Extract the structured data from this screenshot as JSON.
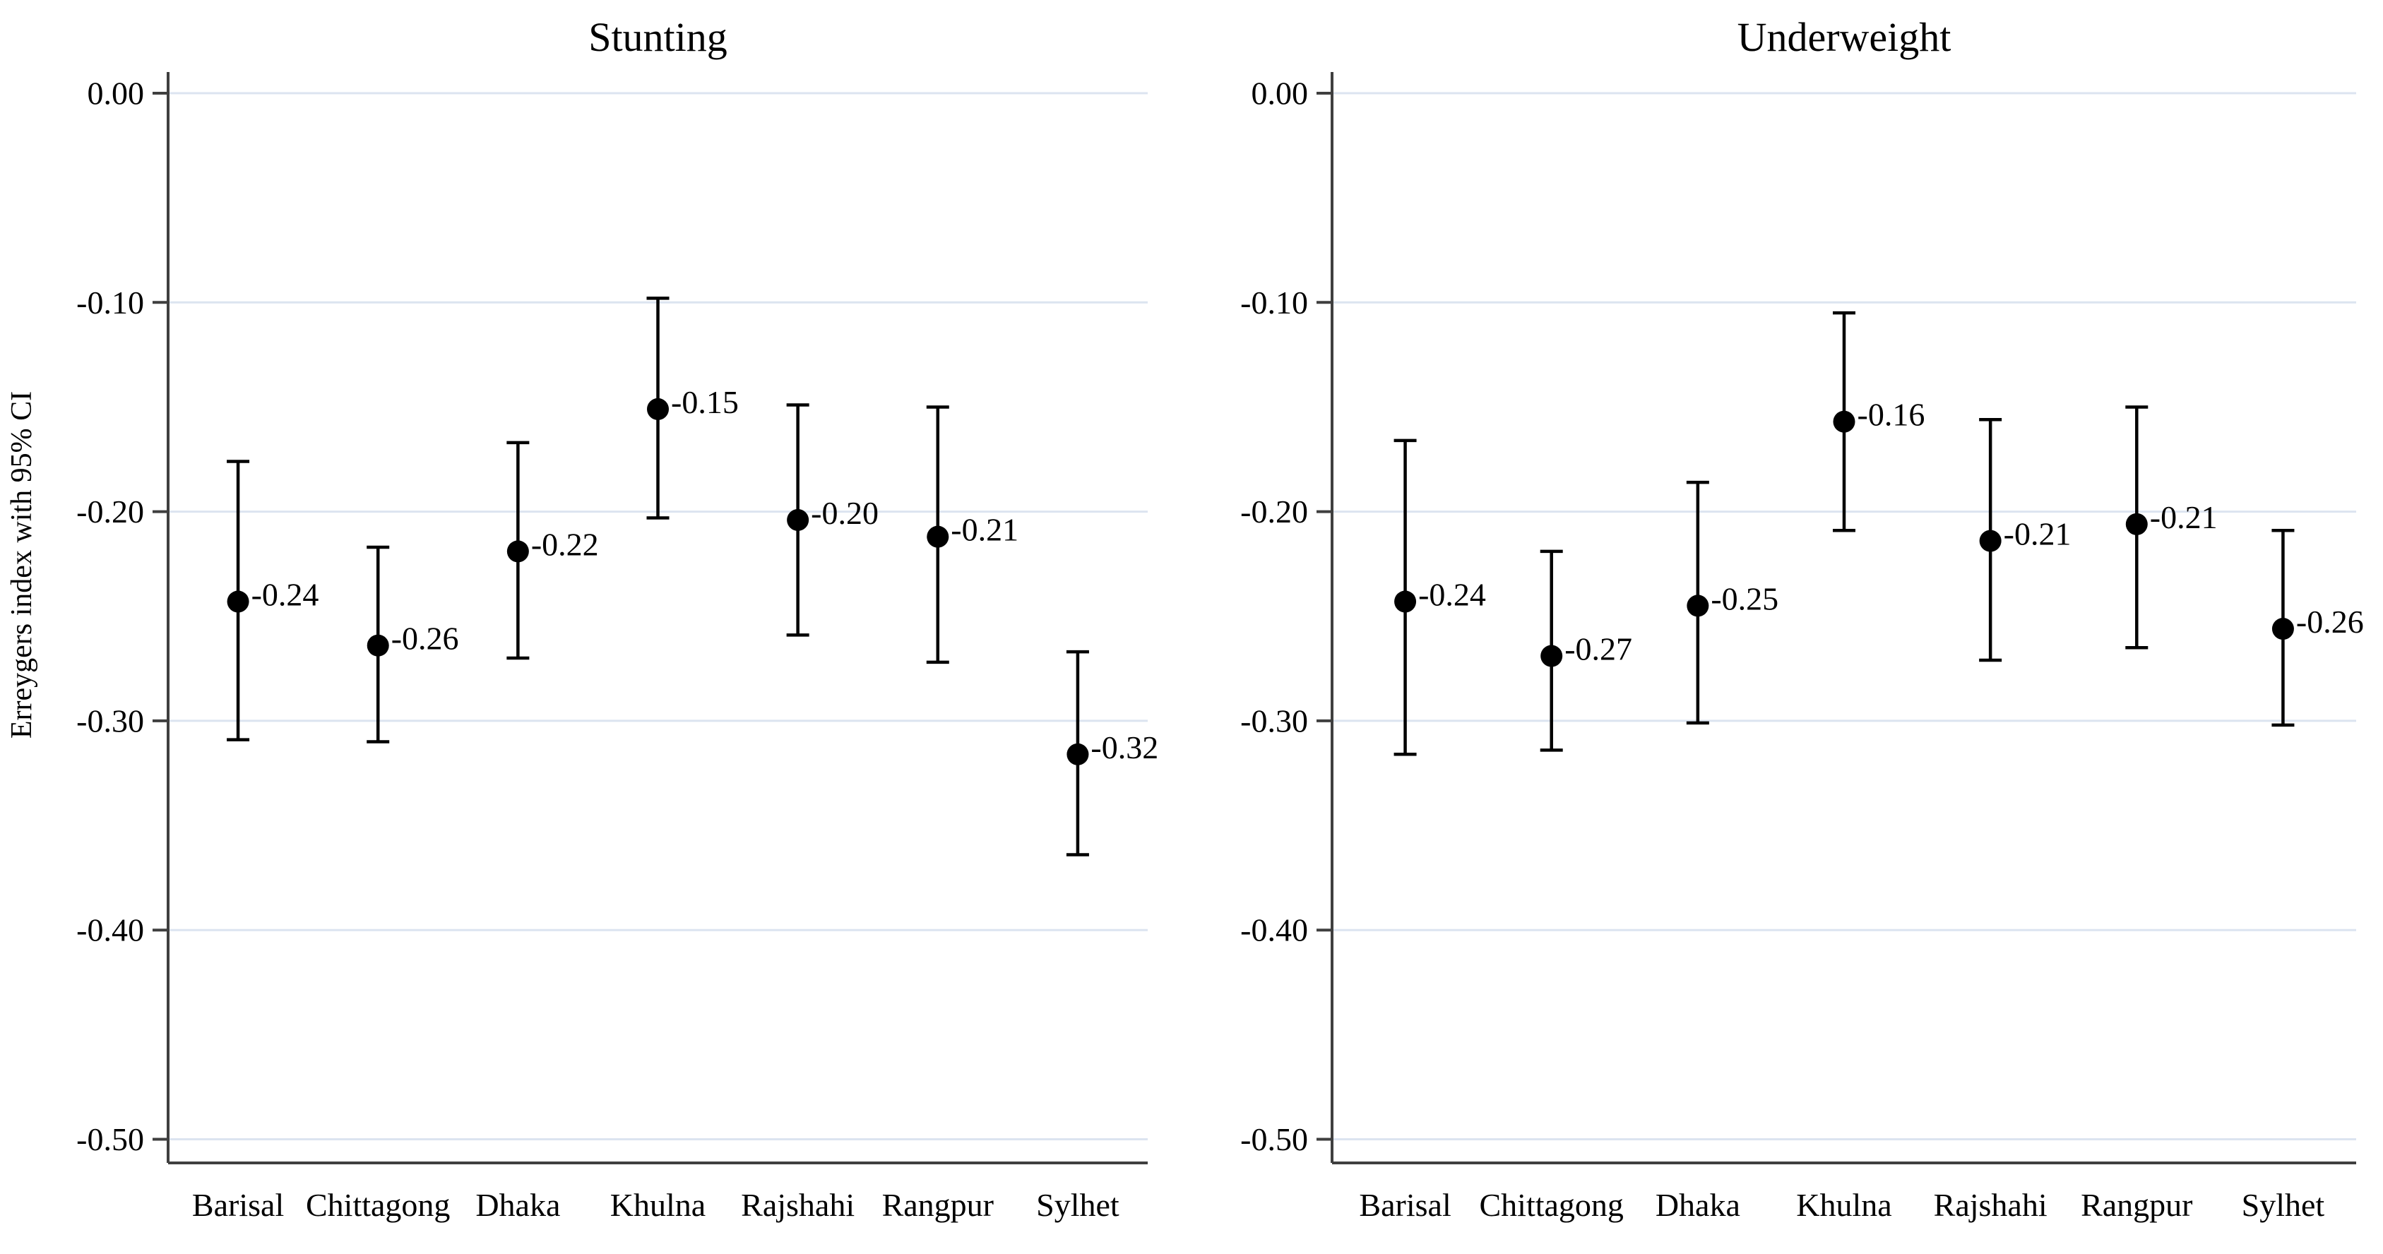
{
  "figure": {
    "y_axis_title": "Erreygers index with 95% CI",
    "colors": {
      "background": "#ffffff",
      "gridline": "#dce4f0",
      "axis": "#3f3f3f",
      "marker": "#000000",
      "text": "#000000"
    },
    "y_ticks": [
      {
        "value": 0.0,
        "label": "0.00"
      },
      {
        "value": -0.1,
        "label": "-0.10"
      },
      {
        "value": -0.2,
        "label": "-0.20"
      },
      {
        "value": -0.3,
        "label": "-0.30"
      },
      {
        "value": -0.4,
        "label": "-0.40"
      },
      {
        "value": -0.5,
        "label": "-0.50"
      }
    ]
  },
  "chart_data": [
    {
      "type": "scatter",
      "title": "Stunting",
      "xlabel": "",
      "ylabel": "Erreygers index with 95% CI",
      "ylim": [
        -0.52,
        0.01
      ],
      "grid": true,
      "legend": "none",
      "categories": [
        "Barisal",
        "Chittagong",
        "Dhaka",
        "Khulna",
        "Rajshahi",
        "Rangpur",
        "Sylhet"
      ],
      "points": [
        {
          "category": "Barisal",
          "value": -0.243,
          "label": "-0.24",
          "ci_low": -0.309,
          "ci_high": -0.176
        },
        {
          "category": "Chittagong",
          "value": -0.264,
          "label": "-0.26",
          "ci_low": -0.31,
          "ci_high": -0.217
        },
        {
          "category": "Dhaka",
          "value": -0.219,
          "label": "-0.22",
          "ci_low": -0.27,
          "ci_high": -0.167
        },
        {
          "category": "Khulna",
          "value": -0.151,
          "label": "-0.15",
          "ci_low": -0.203,
          "ci_high": -0.098
        },
        {
          "category": "Rajshahi",
          "value": -0.204,
          "label": "-0.20",
          "ci_low": -0.259,
          "ci_high": -0.149
        },
        {
          "category": "Rangpur",
          "value": -0.212,
          "label": "-0.21",
          "ci_low": -0.272,
          "ci_high": -0.15
        },
        {
          "category": "Sylhet",
          "value": -0.316,
          "label": "-0.32",
          "ci_low": -0.364,
          "ci_high": -0.267
        }
      ]
    },
    {
      "type": "scatter",
      "title": "Underweight",
      "xlabel": "",
      "ylabel": "Erreygers index with 95% CI",
      "ylim": [
        -0.52,
        0.01
      ],
      "grid": true,
      "legend": "none",
      "categories": [
        "Barisal",
        "Chittagong",
        "Dhaka",
        "Khulna",
        "Rajshahi",
        "Rangpur",
        "Sylhet"
      ],
      "points": [
        {
          "category": "Barisal",
          "value": -0.243,
          "label": "-0.24",
          "ci_low": -0.316,
          "ci_high": -0.166
        },
        {
          "category": "Chittagong",
          "value": -0.269,
          "label": "-0.27",
          "ci_low": -0.314,
          "ci_high": -0.219
        },
        {
          "category": "Dhaka",
          "value": -0.245,
          "label": "-0.25",
          "ci_low": -0.301,
          "ci_high": -0.186
        },
        {
          "category": "Khulna",
          "value": -0.157,
          "label": "-0.16",
          "ci_low": -0.209,
          "ci_high": -0.105
        },
        {
          "category": "Rajshahi",
          "value": -0.214,
          "label": "-0.21",
          "ci_low": -0.271,
          "ci_high": -0.156
        },
        {
          "category": "Rangpur",
          "value": -0.206,
          "label": "-0.21",
          "ci_low": -0.265,
          "ci_high": -0.15
        },
        {
          "category": "Sylhet",
          "value": -0.256,
          "label": "-0.26",
          "ci_low": -0.302,
          "ci_high": -0.209
        }
      ]
    }
  ]
}
